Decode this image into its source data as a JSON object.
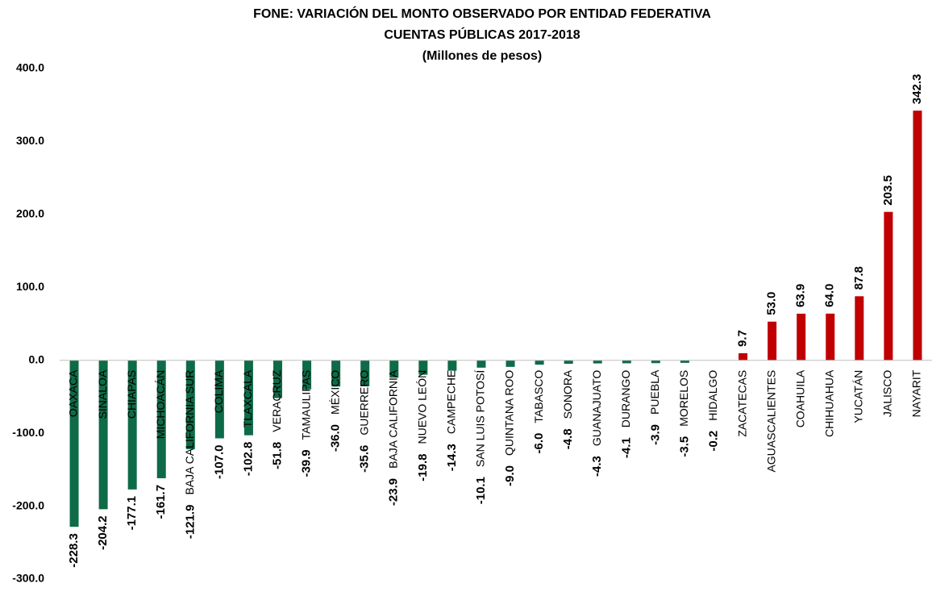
{
  "chart_data": {
    "type": "bar",
    "title": "FONE:  VARIACIÓN DEL MONTO OBSERVADO POR ENTIDAD FEDERATIVA",
    "subtitle": "CUENTAS PÚBLICAS 2017-2018",
    "unit_label": "(Millones de pesos)",
    "categories": [
      "OAXACA",
      "SINALOA",
      "CHIAPAS",
      "MICHOACÁN",
      "BAJA CALIFORNIA SUR",
      "COLIMA",
      "TLAXCALA",
      "VERACRUZ",
      "TAMAULIPAS",
      "MÉXICO",
      "GUERRERO",
      "BAJA CALIFORNIA",
      "NUEVO LEÓN",
      "CAMPECHE",
      "SAN LUIS POTOSÍ",
      "QUINTANA ROO",
      "TABASCO",
      "SONORA",
      "GUANAJUATO",
      "DURANGO",
      "PUEBLA",
      "MORELOS",
      "HIDALGO",
      "ZACATECAS",
      "AGUASCALIENTES",
      "COAHUILA",
      "CHIHUAHUA",
      "YUCATÁN",
      "JALISCO",
      "NAYARIT"
    ],
    "values": [
      -228.3,
      -204.2,
      -177.1,
      -161.7,
      -121.9,
      -107.0,
      -102.8,
      -51.8,
      -39.9,
      -36.0,
      -35.6,
      -23.9,
      -19.8,
      -14.3,
      -10.1,
      -9.0,
      -6.0,
      -4.8,
      -4.3,
      -4.1,
      -3.9,
      -3.5,
      -0.2,
      9.7,
      53.0,
      63.9,
      64.0,
      87.8,
      203.5,
      342.3
    ],
    "value_labels": [
      "-228.3",
      "-204.2",
      "-177.1",
      "-161.7",
      "-121.9",
      "-107.0",
      "-102.8",
      "-51.8",
      "-39.9",
      "-36.0",
      "-35.6",
      "-23.9",
      "-19.8",
      "-14.3",
      "-10.1",
      "-9.0",
      "-6.0",
      "-4.8",
      "-4.3",
      "-4.1",
      "-3.9",
      "-3.5",
      "-0.2",
      "9.7",
      "53.0",
      "63.9",
      "64.0",
      "87.8",
      "203.5",
      "342.3"
    ],
    "negative_color": "#0e6b47",
    "positive_color": "#c00000",
    "ylim": [
      -300,
      400
    ],
    "yticks": [
      {
        "value": -300,
        "label": "-300.0"
      },
      {
        "value": -200,
        "label": "-200.0"
      },
      {
        "value": -100,
        "label": "-100.0"
      },
      {
        "value": 0,
        "label": "0.0"
      },
      {
        "value": 100,
        "label": "100.0"
      },
      {
        "value": 200,
        "label": "200.0"
      },
      {
        "value": 300,
        "label": "300.0"
      },
      {
        "value": 400,
        "label": "400.0"
      }
    ],
    "grid": false
  }
}
